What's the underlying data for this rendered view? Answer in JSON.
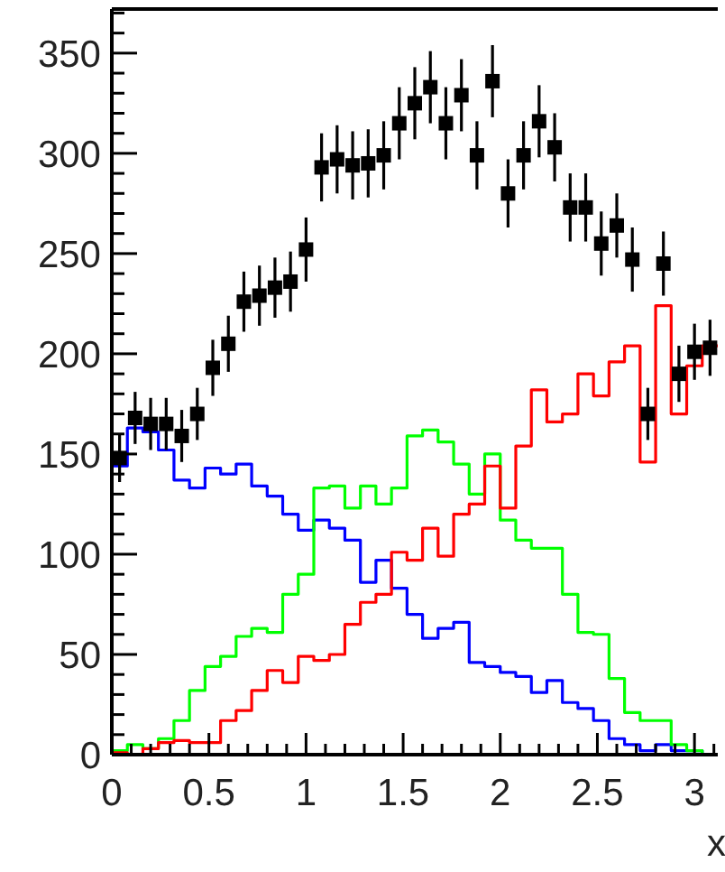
{
  "chart_data": {
    "type": "histogram",
    "xlabel": "x",
    "xlim": [
      0,
      3.12
    ],
    "ylim": [
      0,
      372
    ],
    "xticks": [
      0,
      {
        "value": 0.1,
        "label": null
      },
      {
        "value": 0.2,
        "label": null
      },
      {
        "value": 0.3,
        "label": null
      },
      {
        "value": 0.4,
        "label": null
      },
      0.5,
      {
        "value": 0.6,
        "label": null
      },
      {
        "value": 0.7,
        "label": null
      },
      {
        "value": 0.8,
        "label": null
      },
      {
        "value": 0.9,
        "label": null
      },
      1,
      {
        "value": 1.1,
        "label": null
      },
      {
        "value": 1.2,
        "label": null
      },
      {
        "value": 1.3,
        "label": null
      },
      {
        "value": 1.4,
        "label": null
      },
      1.5,
      {
        "value": 1.6,
        "label": null
      },
      {
        "value": 1.7,
        "label": null
      },
      {
        "value": 1.8,
        "label": null
      },
      {
        "value": 1.9,
        "label": null
      },
      2,
      {
        "value": 2.1,
        "label": null
      },
      {
        "value": 2.2,
        "label": null
      },
      {
        "value": 2.3,
        "label": null
      },
      {
        "value": 2.4,
        "label": null
      },
      2.5,
      {
        "value": 2.6,
        "label": null
      },
      {
        "value": 2.7,
        "label": null
      },
      {
        "value": 2.8,
        "label": null
      },
      {
        "value": 2.9,
        "label": null
      },
      3,
      {
        "value": 3.1,
        "label": null
      }
    ],
    "yticks": [
      0,
      {
        "value": 10,
        "label": null
      },
      {
        "value": 20,
        "label": null
      },
      {
        "value": 30,
        "label": null
      },
      {
        "value": 40,
        "label": null
      },
      50,
      {
        "value": 60,
        "label": null
      },
      {
        "value": 70,
        "label": null
      },
      {
        "value": 80,
        "label": null
      },
      {
        "value": 90,
        "label": null
      },
      100,
      {
        "value": 110,
        "label": null
      },
      {
        "value": 120,
        "label": null
      },
      {
        "value": 130,
        "label": null
      },
      {
        "value": 140,
        "label": null
      },
      150,
      {
        "value": 160,
        "label": null
      },
      {
        "value": 170,
        "label": null
      },
      {
        "value": 180,
        "label": null
      },
      {
        "value": 190,
        "label": null
      },
      200,
      {
        "value": 210,
        "label": null
      },
      {
        "value": 220,
        "label": null
      },
      {
        "value": 230,
        "label": null
      },
      {
        "value": 240,
        "label": null
      },
      250,
      {
        "value": 260,
        "label": null
      },
      {
        "value": 270,
        "label": null
      },
      {
        "value": 280,
        "label": null
      },
      {
        "value": 290,
        "label": null
      },
      300,
      {
        "value": 310,
        "label": null
      },
      {
        "value": 320,
        "label": null
      },
      {
        "value": 330,
        "label": null
      },
      {
        "value": 340,
        "label": null
      },
      350,
      {
        "value": 360,
        "label": null
      },
      {
        "value": 370,
        "label": null
      }
    ],
    "grid": false,
    "bins": [
      0,
      0.08,
      0.16,
      0.24,
      0.32,
      0.4,
      0.48,
      0.56,
      0.64,
      0.72,
      0.8,
      0.88,
      0.96,
      1.04,
      1.12,
      1.2,
      1.28,
      1.36,
      1.44,
      1.52,
      1.6,
      1.68,
      1.76,
      1.84,
      1.92,
      2,
      2.08,
      2.16,
      2.24,
      2.32,
      2.4,
      2.48,
      2.56,
      2.64,
      2.72,
      2.8,
      2.88,
      2.96,
      3.04,
      3.12
    ],
    "series": [
      {
        "color": "#0000ff",
        "values": [
          144,
          163,
          161,
          152,
          137,
          133,
          143,
          140,
          145,
          134,
          129,
          120,
          112,
          117,
          113,
          107,
          86,
          97,
          83,
          70,
          58,
          63,
          66,
          46,
          44,
          41,
          39,
          31,
          37,
          26,
          23,
          17,
          8,
          5,
          2,
          5,
          2,
          2,
          0
        ]
      },
      {
        "color": "#00ff00",
        "values": [
          2,
          5,
          3,
          8,
          17,
          32,
          44,
          49,
          59,
          63,
          61,
          80,
          90,
          133,
          134,
          123,
          134,
          125,
          133,
          159,
          162,
          156,
          145,
          130,
          150,
          117,
          107,
          103,
          103,
          80,
          61,
          60,
          38,
          21,
          17,
          17,
          5,
          2,
          0
        ]
      },
      {
        "color": "#ff0000",
        "values": [
          1,
          0,
          3,
          6,
          7,
          6,
          6,
          17,
          22,
          32,
          42,
          36,
          49,
          47,
          50,
          65,
          76,
          80,
          101,
          97,
          113,
          99,
          120,
          125,
          144,
          123,
          154,
          182,
          166,
          170,
          190,
          179,
          196,
          204,
          146,
          224,
          170,
          194,
          204
        ]
      },
      {
        "type": "scatter",
        "color": "#000000",
        "marker": "square",
        "x": [
          0.04,
          0.12,
          0.2,
          0.28,
          0.36,
          0.44,
          0.52,
          0.6,
          0.68,
          0.76,
          0.84,
          0.92,
          1,
          1.08,
          1.16,
          1.24,
          1.32,
          1.4,
          1.48,
          1.56,
          1.64,
          1.72,
          1.8,
          1.88,
          1.96,
          2.04,
          2.12,
          2.2,
          2.28,
          2.36,
          2.44,
          2.52,
          2.6,
          2.68,
          2.76,
          2.84,
          2.92,
          3,
          3.08
        ],
        "values": [
          148,
          168,
          165,
          165,
          159,
          170,
          193,
          205,
          226,
          229,
          233,
          236,
          252,
          293,
          297,
          294,
          295,
          299,
          315,
          325,
          333,
          315,
          329,
          299,
          336,
          280,
          299,
          316,
          303,
          273,
          273,
          255,
          264,
          247,
          170,
          245,
          190,
          201,
          203
        ],
        "errors": [
          12,
          13,
          13,
          13,
          13,
          13,
          14,
          14,
          15,
          15,
          15,
          15,
          16,
          17,
          17,
          17,
          17,
          17,
          18,
          18,
          18,
          18,
          18,
          17,
          18,
          17,
          17,
          18,
          17,
          17,
          17,
          16,
          16,
          16,
          13,
          16,
          14,
          14,
          14
        ]
      }
    ]
  }
}
